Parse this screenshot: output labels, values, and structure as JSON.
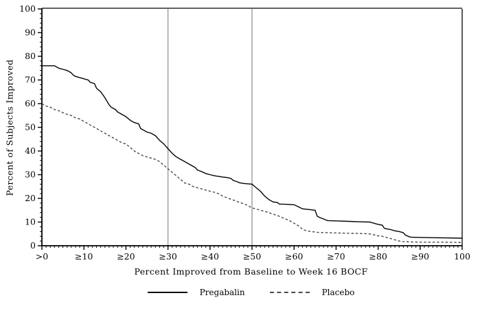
{
  "chart_data": {
    "type": "line",
    "title": "",
    "xlabel": "Percent Improved from Baseline to Week 16 BOCF",
    "ylabel": "Percent of Subjects Improved",
    "xlim": [
      0,
      100
    ],
    "ylim": [
      0,
      100
    ],
    "x_tick_values": [
      0,
      10,
      20,
      30,
      40,
      50,
      60,
      70,
      80,
      90,
      100
    ],
    "x_tick_labels": [
      ">0",
      "≥10",
      "≥20",
      "≥30",
      "≥40",
      "≥50",
      "≥60",
      "≥70",
      "≥80",
      "≥90",
      "100"
    ],
    "y_tick_values": [
      0,
      10,
      20,
      30,
      40,
      50,
      60,
      70,
      80,
      90,
      100
    ],
    "y_tick_labels": [
      "0",
      "10",
      "20",
      "30",
      "40",
      "50",
      "60",
      "70",
      "80",
      "90",
      "100"
    ],
    "x_minor_step": 1,
    "y_minor_step": 2,
    "grid": false,
    "legend_position": "bottom",
    "reference_lines_x": [
      30,
      50
    ],
    "series": [
      {
        "name": "Pregabalin",
        "style": "solid",
        "color": "#000000",
        "points": [
          [
            0,
            76
          ],
          [
            3,
            76
          ],
          [
            3.5,
            75.5
          ],
          [
            4,
            75
          ],
          [
            5,
            74.5
          ],
          [
            6,
            74
          ],
          [
            6.5,
            73.5
          ],
          [
            7,
            73
          ],
          [
            7.5,
            72
          ],
          [
            8,
            71.5
          ],
          [
            9,
            71
          ],
          [
            10,
            70.5
          ],
          [
            11,
            70
          ],
          [
            11.5,
            69
          ],
          [
            12.5,
            68.5
          ],
          [
            13,
            66.5
          ],
          [
            14,
            65
          ],
          [
            15,
            62.5
          ],
          [
            16,
            59.5
          ],
          [
            16.5,
            58.5
          ],
          [
            17.5,
            57.5
          ],
          [
            18,
            56.5
          ],
          [
            19,
            55.5
          ],
          [
            20,
            54.5
          ],
          [
            21,
            53
          ],
          [
            22,
            52
          ],
          [
            23,
            51.5
          ],
          [
            23.5,
            49.5
          ],
          [
            25,
            48
          ],
          [
            26,
            47.5
          ],
          [
            27,
            46.5
          ],
          [
            27.5,
            45.5
          ],
          [
            28,
            44.5
          ],
          [
            29,
            43
          ],
          [
            30,
            41
          ],
          [
            30.5,
            40
          ],
          [
            31,
            39
          ],
          [
            32,
            37.5
          ],
          [
            33,
            36.5
          ],
          [
            34,
            35.5
          ],
          [
            35,
            34.5
          ],
          [
            36,
            33.5
          ],
          [
            36.5,
            33
          ],
          [
            37,
            32
          ],
          [
            38,
            31.3
          ],
          [
            39,
            30.5
          ],
          [
            40,
            30
          ],
          [
            41,
            29.6
          ],
          [
            42,
            29.3
          ],
          [
            43,
            29
          ],
          [
            44,
            28.8
          ],
          [
            45,
            28.4
          ],
          [
            45.5,
            27.6
          ],
          [
            46.5,
            27
          ],
          [
            47,
            26.6
          ],
          [
            48,
            26.3
          ],
          [
            50,
            26
          ],
          [
            51,
            24.5
          ],
          [
            52,
            23
          ],
          [
            53,
            21
          ],
          [
            54,
            19.5
          ],
          [
            55,
            18.5
          ],
          [
            56,
            18.3
          ],
          [
            56.5,
            17.6
          ],
          [
            58,
            17.5
          ],
          [
            60,
            17.3
          ],
          [
            61,
            16.5
          ],
          [
            62,
            15.6
          ],
          [
            64,
            15.2
          ],
          [
            65,
            15
          ],
          [
            65.5,
            12.5
          ],
          [
            66,
            12
          ],
          [
            67,
            11.3
          ],
          [
            68,
            10.6
          ],
          [
            70,
            10.5
          ],
          [
            73,
            10.3
          ],
          [
            76,
            10.1
          ],
          [
            78,
            10
          ],
          [
            80,
            9
          ],
          [
            81,
            8.7
          ],
          [
            81.5,
            7.3
          ],
          [
            83,
            6.8
          ],
          [
            84,
            6.3
          ],
          [
            85,
            6
          ],
          [
            86,
            5.5
          ],
          [
            86.5,
            4.5
          ],
          [
            87.5,
            3.7
          ],
          [
            88,
            3.6
          ],
          [
            90,
            3.5
          ],
          [
            93,
            3.4
          ],
          [
            96,
            3.3
          ],
          [
            100,
            3.2
          ]
        ]
      },
      {
        "name": "Placebo",
        "style": "dashed",
        "color": "#4a4a4a",
        "points": [
          [
            0,
            60
          ],
          [
            1,
            59
          ],
          [
            2,
            58.5
          ],
          [
            3,
            57.5
          ],
          [
            4,
            57
          ],
          [
            5,
            56.2
          ],
          [
            6,
            55.5
          ],
          [
            7,
            55
          ],
          [
            8,
            54
          ],
          [
            9,
            53.5
          ],
          [
            10,
            52.5
          ],
          [
            10.5,
            52
          ],
          [
            11,
            51.5
          ],
          [
            12,
            50.5
          ],
          [
            13,
            49.5
          ],
          [
            14,
            48.5
          ],
          [
            15,
            47.5
          ],
          [
            16,
            46.5
          ],
          [
            17,
            45.5
          ],
          [
            18,
            44.5
          ],
          [
            19,
            43.5
          ],
          [
            20,
            43
          ],
          [
            21,
            41.5
          ],
          [
            22,
            40
          ],
          [
            23,
            39
          ],
          [
            24,
            38
          ],
          [
            25,
            37.5
          ],
          [
            26,
            37
          ],
          [
            27,
            36.5
          ],
          [
            28,
            35.5
          ],
          [
            29,
            34
          ],
          [
            30,
            32.5
          ],
          [
            31,
            31
          ],
          [
            32,
            29.5
          ],
          [
            33,
            28
          ],
          [
            34,
            26.5
          ],
          [
            35,
            26
          ],
          [
            36,
            25
          ],
          [
            37,
            24.5
          ],
          [
            38,
            24
          ],
          [
            39,
            23.5
          ],
          [
            40,
            23
          ],
          [
            41,
            22.6
          ],
          [
            42,
            22
          ],
          [
            43,
            21
          ],
          [
            44,
            20.3
          ],
          [
            45,
            19.6
          ],
          [
            46,
            19
          ],
          [
            47,
            18.3
          ],
          [
            48,
            17.8
          ],
          [
            49,
            17
          ],
          [
            50,
            16
          ],
          [
            51,
            15.5
          ],
          [
            52,
            15
          ],
          [
            53,
            14.5
          ],
          [
            54,
            14
          ],
          [
            55,
            13.3
          ],
          [
            56,
            12.8
          ],
          [
            57,
            12
          ],
          [
            58,
            11.3
          ],
          [
            59,
            10.5
          ],
          [
            60,
            9.5
          ],
          [
            61,
            8.5
          ],
          [
            62,
            7
          ],
          [
            63,
            6.3
          ],
          [
            64,
            6
          ],
          [
            65,
            5.8
          ],
          [
            66,
            5.6
          ],
          [
            68,
            5.5
          ],
          [
            70,
            5.4
          ],
          [
            72,
            5.3
          ],
          [
            75,
            5.2
          ],
          [
            77,
            5.1
          ],
          [
            78,
            5
          ],
          [
            79,
            4.6
          ],
          [
            80,
            4.2
          ],
          [
            81,
            4
          ],
          [
            82,
            3.5
          ],
          [
            83,
            3
          ],
          [
            84,
            2.5
          ],
          [
            85,
            2
          ],
          [
            85.5,
            1.8
          ],
          [
            86,
            1.7
          ],
          [
            88,
            1.6
          ],
          [
            90,
            1.5
          ],
          [
            95,
            1.5
          ],
          [
            100,
            1.4
          ]
        ]
      }
    ]
  },
  "legend": {
    "items": [
      {
        "label": "Pregabalin",
        "style": "solid"
      },
      {
        "label": "Placebo",
        "style": "dashed"
      }
    ]
  },
  "colors": {
    "background": "#ffffff",
    "axis": "#000000",
    "reference_line": "#a6a6a6",
    "text": "#000000"
  }
}
